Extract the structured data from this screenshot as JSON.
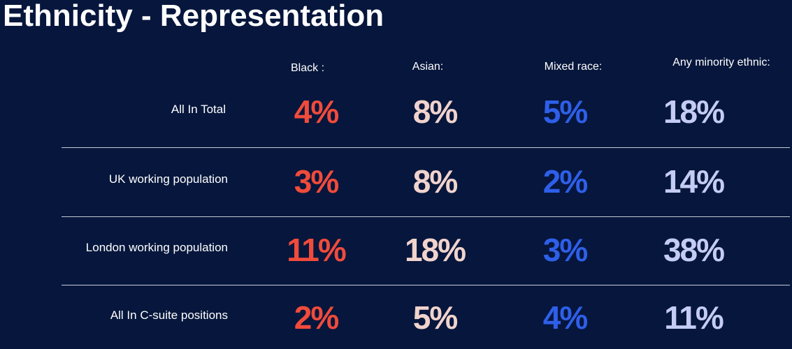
{
  "title": "Ethnicity - Representation",
  "table": {
    "columns": [
      "Black :",
      "Asian:",
      "Mixed race:",
      "Any minority ethnic:"
    ],
    "rows": [
      {
        "label": "All In Total",
        "cells": [
          "4%",
          "8%",
          "5%",
          "18%"
        ]
      },
      {
        "label": "UK working population",
        "cells": [
          "3%",
          "8%",
          "2%",
          "14%"
        ]
      },
      {
        "label": "London working population",
        "cells": [
          "11%",
          "18%",
          "3%",
          "38%"
        ]
      },
      {
        "label": "All In C-suite positions",
        "cells": [
          "2%",
          "5%",
          "4%",
          "11%"
        ]
      }
    ]
  }
}
